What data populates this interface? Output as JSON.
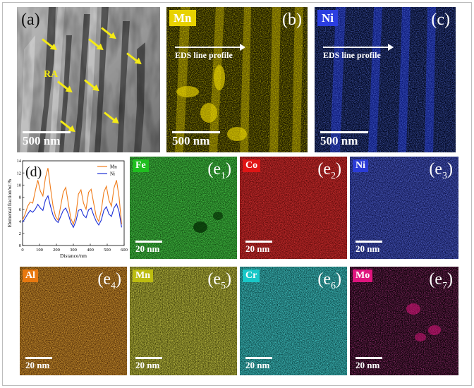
{
  "panels": {
    "a": {
      "label": "(a)",
      "annotation": "RA",
      "scale": "500 nm"
    },
    "b": {
      "label": "(b)",
      "element": "Mn",
      "profile": "EDS line profile",
      "scale": "500 nm",
      "color": "#e8d200"
    },
    "c": {
      "label": "(c)",
      "element": "Ni",
      "profile": "EDS line profile",
      "scale": "500 nm",
      "color": "#2b3ee0"
    },
    "d": {
      "label": "(d)"
    },
    "e1": {
      "label": "e",
      "sub": "1",
      "element": "Fe",
      "scale": "20 nm",
      "color": "#1fbf1f"
    },
    "e2": {
      "label": "e",
      "sub": "2",
      "element": "Co",
      "scale": "20 nm",
      "color": "#e01515"
    },
    "e3": {
      "label": "e",
      "sub": "3",
      "element": "Ni",
      "scale": "20 nm",
      "color": "#2a3bd6"
    },
    "e4": {
      "label": "e",
      "sub": "4",
      "element": "Al",
      "scale": "20 nm",
      "color": "#e8780f"
    },
    "e5": {
      "label": "e",
      "sub": "5",
      "element": "Mn",
      "scale": "20 nm",
      "color": "#bcbc10"
    },
    "e6": {
      "label": "e",
      "sub": "6",
      "element": "Cr",
      "scale": "20 nm",
      "color": "#18c8c8"
    },
    "e7": {
      "label": "e",
      "sub": "7",
      "element": "Mo",
      "scale": "20 nm",
      "color": "#e0147e"
    }
  },
  "chart_data": {
    "type": "line",
    "xlabel": "Distance/nm",
    "ylabel": "Elemental fraction/wt.%",
    "xlim": [
      0,
      600
    ],
    "ylim": [
      0,
      14
    ],
    "xticks": [
      0,
      100,
      200,
      300,
      400,
      500,
      600
    ],
    "yticks": [
      0,
      2,
      4,
      6,
      8,
      10,
      12,
      14
    ],
    "legend_position": "top-right",
    "series": [
      {
        "name": "Mn",
        "color": "#f07c1a",
        "x": [
          0,
          15,
          30,
          45,
          60,
          75,
          90,
          105,
          120,
          135,
          150,
          165,
          180,
          195,
          210,
          225,
          240,
          255,
          270,
          285,
          300,
          315,
          330,
          345,
          360,
          375,
          390,
          405,
          420,
          435,
          450,
          465,
          480,
          495,
          510,
          525,
          540,
          555,
          570,
          585
        ],
        "values": [
          4.2,
          5.2,
          6.5,
          7.2,
          7.0,
          9.0,
          10.8,
          9.0,
          8.2,
          11.2,
          12.8,
          9.5,
          6.5,
          4.8,
          4.2,
          6.5,
          8.8,
          9.6,
          7.0,
          4.5,
          3.5,
          5.0,
          8.5,
          9.2,
          7.0,
          6.0,
          8.8,
          9.3,
          7.0,
          4.8,
          4.0,
          5.8,
          8.8,
          9.8,
          7.5,
          6.5,
          9.5,
          10.8,
          8.0,
          3.5
        ]
      },
      {
        "name": "Ni",
        "color": "#1c2fd6",
        "x": [
          0,
          15,
          30,
          45,
          60,
          75,
          90,
          105,
          120,
          135,
          150,
          165,
          180,
          195,
          210,
          225,
          240,
          255,
          270,
          285,
          300,
          315,
          330,
          345,
          360,
          375,
          390,
          405,
          420,
          435,
          450,
          465,
          480,
          495,
          510,
          525,
          540,
          555,
          570,
          585
        ],
        "values": [
          3.8,
          4.5,
          5.2,
          5.8,
          5.5,
          6.0,
          6.8,
          6.2,
          5.8,
          7.5,
          8.2,
          6.5,
          5.0,
          4.2,
          3.8,
          4.8,
          5.8,
          6.2,
          5.2,
          3.8,
          3.0,
          4.0,
          5.8,
          6.0,
          5.0,
          4.6,
          5.9,
          6.2,
          5.0,
          4.0,
          3.4,
          4.2,
          5.8,
          6.4,
          5.2,
          4.8,
          6.2,
          6.9,
          5.6,
          3.0
        ]
      }
    ]
  }
}
